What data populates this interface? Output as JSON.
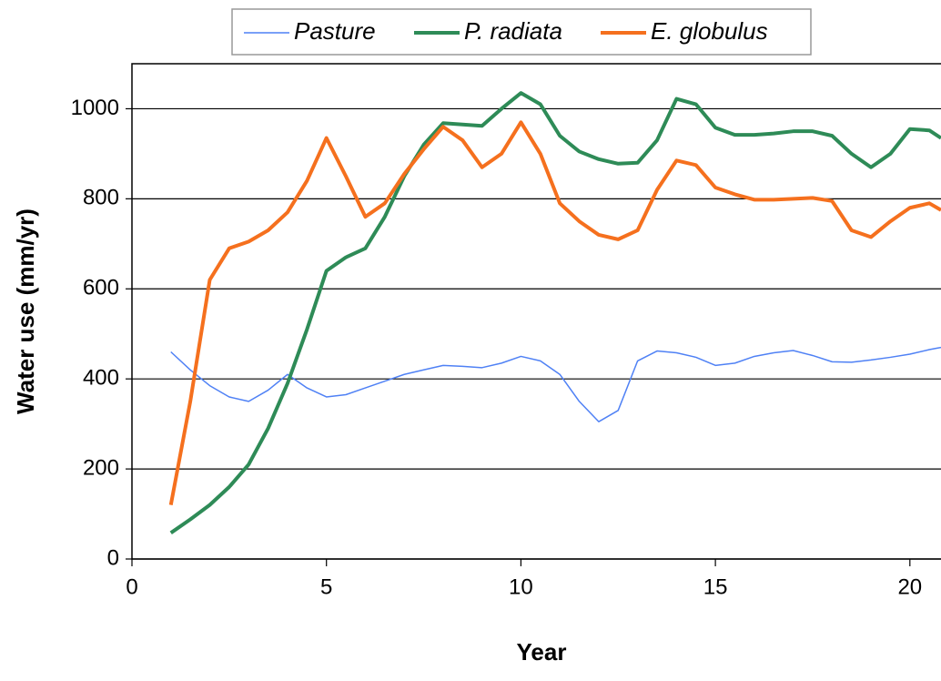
{
  "chart_data": {
    "type": "line",
    "x_label": "Year",
    "y_label": "Water use (mm/yr)",
    "x": [
      1,
      1.5,
      2,
      2.5,
      3,
      3.5,
      4,
      4.5,
      5,
      5.5,
      6,
      6.5,
      7,
      7.5,
      8,
      8.5,
      9,
      9.5,
      10,
      10.5,
      11,
      11.5,
      12,
      12.5,
      13,
      13.5,
      14,
      14.5,
      15,
      15.5,
      16,
      16.5,
      17,
      17.5,
      18,
      18.5,
      19,
      19.5,
      20,
      20.5,
      20.8
    ],
    "series": [
      {
        "name": "Pasture",
        "color": "#4f81f5",
        "line_width": 1.5,
        "values": [
          460,
          420,
          385,
          360,
          350,
          375,
          410,
          380,
          360,
          365,
          380,
          395,
          410,
          420,
          430,
          428,
          425,
          435,
          450,
          440,
          410,
          350,
          305,
          330,
          440,
          462,
          458,
          448,
          430,
          435,
          450,
          458,
          463,
          452,
          438,
          437,
          442,
          448,
          455,
          465,
          470
        ]
      },
      {
        "name": "P. radiata",
        "color": "#2e8b57",
        "line_width": 4,
        "values": [
          58,
          88,
          120,
          160,
          210,
          290,
          390,
          510,
          640,
          670,
          690,
          760,
          850,
          920,
          968,
          965,
          962,
          1000,
          1035,
          1010,
          940,
          905,
          888,
          878,
          880,
          930,
          1022,
          1010,
          958,
          942,
          942,
          945,
          950,
          950,
          940,
          900,
          870,
          900,
          955,
          952,
          935
        ]
      },
      {
        "name": "E. globulus",
        "color": "#f5701e",
        "line_width": 4,
        "values": [
          120,
          350,
          620,
          690,
          705,
          730,
          770,
          840,
          935,
          850,
          760,
          790,
          855,
          910,
          960,
          930,
          870,
          900,
          970,
          900,
          790,
          750,
          720,
          710,
          730,
          820,
          885,
          875,
          825,
          810,
          798,
          798,
          800,
          802,
          795,
          730,
          715,
          750,
          780,
          790,
          775
        ]
      }
    ],
    "xlim": [
      0,
      20.8
    ],
    "xticks": [
      0,
      5,
      10,
      15,
      20
    ],
    "ylim": [
      0,
      1100
    ],
    "yticks": [
      0,
      200,
      400,
      600,
      800,
      1000
    ],
    "grid": true,
    "legend": "top"
  }
}
